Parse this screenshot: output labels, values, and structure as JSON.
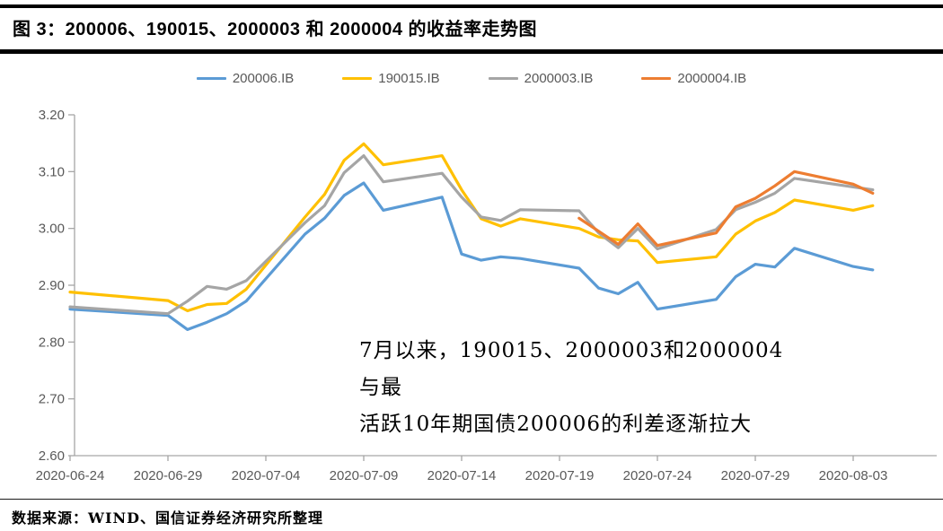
{
  "header": {
    "title": "图 3：200006、190015、2000003 和 2000004 的收益率走势图"
  },
  "footer": {
    "source": "数据来源：WIND、国信证券经济研究所整理"
  },
  "chart_data": {
    "type": "line",
    "title": "图 3：200006、190015、2000003 和 2000004 的收益率走势图",
    "xlabel": "",
    "ylabel": "",
    "ylim": [
      2.6,
      3.2
    ],
    "y_tick_labels": [
      "3.20",
      "3.10",
      "3.00",
      "2.90",
      "2.80",
      "2.70",
      "2.60"
    ],
    "y_tick_values": [
      3.2,
      3.1,
      3.0,
      2.9,
      2.8,
      2.7,
      2.6
    ],
    "grid": false,
    "legend_position": "top-center",
    "x_tick_labels": [
      "2020-06-24",
      "2020-06-29",
      "2020-07-04",
      "2020-07-09",
      "2020-07-14",
      "2020-07-19",
      "2020-07-24",
      "2020-07-29",
      "2020-08-03"
    ],
    "x_tick_day_offsets": [
      0,
      5,
      10,
      15,
      20,
      25,
      30,
      35,
      40
    ],
    "dates": [
      "2020-06-24",
      "2020-06-29",
      "2020-06-30",
      "2020-07-01",
      "2020-07-02",
      "2020-07-03",
      "2020-07-06",
      "2020-07-07",
      "2020-07-08",
      "2020-07-09",
      "2020-07-10",
      "2020-07-13",
      "2020-07-14",
      "2020-07-15",
      "2020-07-16",
      "2020-07-17",
      "2020-07-20",
      "2020-07-21",
      "2020-07-22",
      "2020-07-23",
      "2020-07-24",
      "2020-07-27",
      "2020-07-28",
      "2020-07-29",
      "2020-07-30",
      "2020-07-31",
      "2020-08-03",
      "2020-08-04"
    ],
    "day_offsets": [
      0,
      5,
      6,
      7,
      8,
      9,
      12,
      13,
      14,
      15,
      16,
      19,
      20,
      21,
      22,
      23,
      26,
      27,
      28,
      29,
      30,
      33,
      34,
      35,
      36,
      37,
      40,
      41
    ],
    "series": [
      {
        "name": "200006.IB",
        "color": "#5B9BD5",
        "values": [
          2.858,
          2.847,
          2.822,
          2.835,
          2.85,
          2.872,
          2.99,
          3.018,
          3.058,
          3.08,
          3.032,
          3.055,
          2.955,
          2.944,
          2.95,
          2.947,
          2.93,
          2.895,
          2.885,
          2.905,
          2.858,
          2.875,
          2.915,
          2.937,
          2.932,
          2.965,
          2.933,
          2.927
        ]
      },
      {
        "name": "190015.IB",
        "color": "#FFC000",
        "values": [
          2.888,
          2.873,
          2.855,
          2.866,
          2.868,
          2.893,
          3.02,
          3.06,
          3.12,
          3.149,
          3.112,
          3.128,
          3.068,
          3.017,
          3.004,
          3.017,
          3.0,
          2.985,
          2.98,
          2.978,
          2.94,
          2.95,
          2.99,
          3.013,
          3.028,
          3.05,
          3.032,
          3.04
        ]
      },
      {
        "name": "2000003.IB",
        "color": "#A5A5A5",
        "values": [
          2.862,
          2.85,
          2.872,
          2.898,
          2.893,
          2.908,
          3.01,
          3.04,
          3.098,
          3.128,
          3.082,
          3.097,
          3.055,
          3.02,
          3.014,
          3.033,
          3.031,
          2.992,
          2.966,
          3.0,
          2.964,
          2.998,
          3.033,
          3.046,
          3.062,
          3.088,
          3.073,
          3.068
        ]
      },
      {
        "name": "2000004.IB",
        "color": "#ED7D31",
        "values": [
          null,
          null,
          null,
          null,
          null,
          null,
          null,
          null,
          null,
          null,
          null,
          null,
          null,
          null,
          null,
          null,
          3.018,
          2.995,
          2.972,
          3.008,
          2.97,
          2.992,
          3.038,
          3.053,
          3.075,
          3.1,
          3.078,
          3.062
        ]
      }
    ],
    "annotation": {
      "line1": "7月以来，190015、2000003和2000004与最",
      "line2": "活跃10年期国债200006的利差逐渐拉大"
    }
  }
}
